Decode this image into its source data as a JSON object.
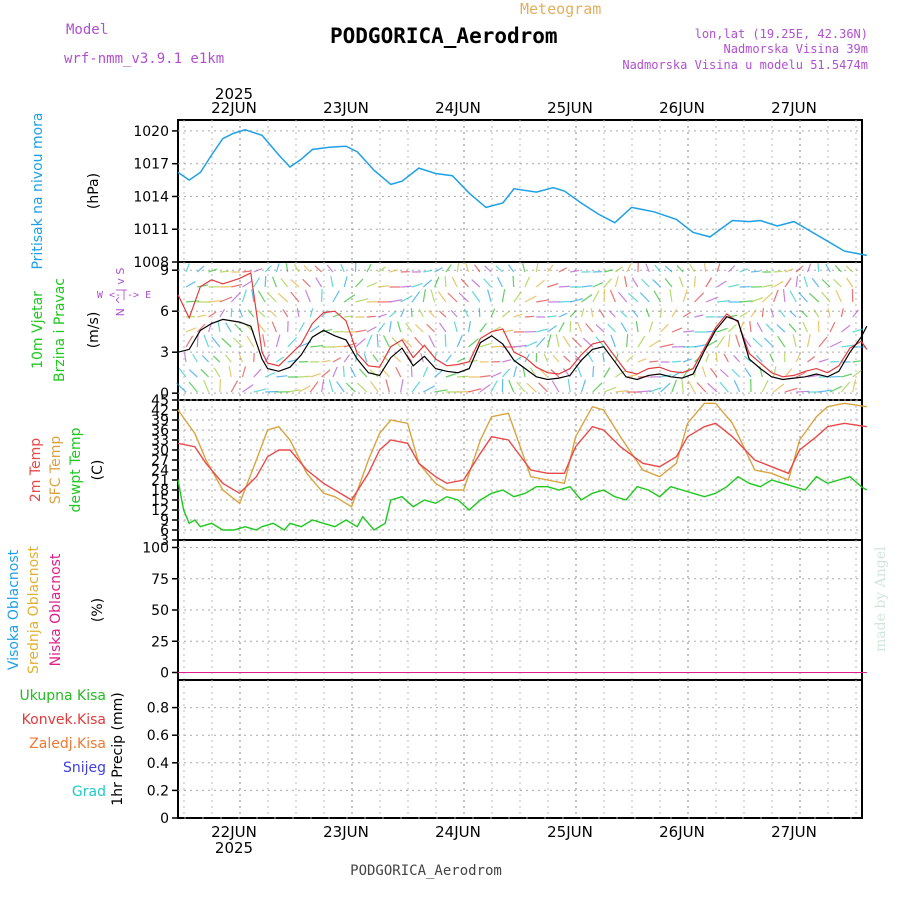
{
  "header": {
    "model_label": "Model",
    "model_value": "wrf-nmm_v3.9.1  e1km",
    "meteogram_label": "Meteogram",
    "station_title": "PODGORICA_Aerodrom",
    "coords": "lon,lat (19.25E, 42.36N)",
    "elevation": "Nadmorska Visina 39m",
    "model_elevation": "Nadmorska Visina u modelu 51.5474m",
    "footer_title": "PODGORICA_Aerodrom",
    "credit": "made by Angel",
    "year_top": "2025",
    "year_bottom": "2025"
  },
  "colors": {
    "pressure": "#1ea0e6",
    "temp2m": "#e84a4a",
    "sfc_temp": "#d9a440",
    "dewpt": "#1ec81e",
    "wind_black": "#000000",
    "wind_red": "#e23a3a",
    "cloud_high": "#1ea0e6",
    "cloud_mid": "#e0b030",
    "cloud_low": "#e0208a",
    "precip_total": "#22bb22",
    "precip_conv": "#e23a3a",
    "precip_frz": "#f07830",
    "precip_snow": "#4040e0",
    "precip_hail": "#22c8c8",
    "model_color": "#b050d0",
    "meteogram_color": "#e0b060"
  },
  "chart_data": [
    {
      "type": "line",
      "panel": "pressure",
      "ylabel_left": "Pritisak na nivou mora",
      "unit": "(hPa)",
      "x_ticks": [
        "22JUN",
        "23JUN",
        "24JUN",
        "25JUN",
        "26JUN",
        "27JUN"
      ],
      "ylim": [
        1008,
        1021
      ],
      "y_ticks": [
        1008,
        1011,
        1014,
        1017,
        1020
      ],
      "series": [
        {
          "key": "pressure",
          "x": [
            0,
            0.1,
            0.2,
            0.3,
            0.4,
            0.5,
            0.6,
            0.75,
            0.9,
            1.0,
            1.1,
            1.2,
            1.35,
            1.5,
            1.6,
            1.75,
            1.9,
            2.0,
            2.15,
            2.3,
            2.45,
            2.6,
            2.75,
            2.9,
            3.0,
            3.2,
            3.35,
            3.45,
            3.6,
            3.75,
            3.9,
            4.05,
            4.25,
            4.45,
            4.6,
            4.75,
            4.95,
            5.1,
            5.2,
            5.35,
            5.5,
            5.65,
            5.8,
            5.95,
            6.15
          ],
          "y": [
            1016.2,
            1015.5,
            1016.2,
            1017.8,
            1019.3,
            1019.8,
            1020.1,
            1019.6,
            1017.8,
            1016.7,
            1017.4,
            1018.3,
            1018.5,
            1018.6,
            1018.1,
            1016.4,
            1015.1,
            1015.4,
            1016.6,
            1016.1,
            1015.9,
            1014.3,
            1013.0,
            1013.4,
            1014.7,
            1014.4,
            1014.8,
            1014.5,
            1013.4,
            1012.4,
            1011.6,
            1013.0,
            1012.6,
            1011.9,
            1010.7,
            1010.3,
            1011.8,
            1011.7,
            1011.8,
            1011.3,
            1011.7,
            1010.8,
            1009.9,
            1009.0,
            1008.6
          ]
        }
      ]
    },
    {
      "type": "line",
      "panel": "wind",
      "ylabel_left": "10m Vjetar",
      "ylabel_left2": "Brzina i Pravac",
      "unit": "(m/s)",
      "compass_ns": "N ^ | v S",
      "compass_we": "W <-|-> E",
      "ylim": [
        -0.5,
        9.6
      ],
      "y_ticks": [
        0,
        3,
        6,
        9
      ],
      "series": [
        {
          "key": "wind_black",
          "x": [
            0,
            0.1,
            0.2,
            0.3,
            0.4,
            0.55,
            0.65,
            0.75,
            0.8,
            0.9,
            1.0,
            1.1,
            1.2,
            1.3,
            1.4,
            1.5,
            1.6,
            1.7,
            1.8,
            1.9,
            2.0,
            2.1,
            2.2,
            2.3,
            2.4,
            2.5,
            2.6,
            2.7,
            2.8,
            2.9,
            3.0,
            3.1,
            3.2,
            3.3,
            3.4,
            3.5,
            3.6,
            3.7,
            3.8,
            3.9,
            4.0,
            4.1,
            4.2,
            4.3,
            4.4,
            4.5,
            4.6,
            4.7,
            4.8,
            4.9,
            5.0,
            5.1,
            5.2,
            5.3,
            5.4,
            5.5,
            5.6,
            5.7,
            5.8,
            5.9,
            6.0,
            6.1,
            6.15
          ],
          "y": [
            3.0,
            3.2,
            4.6,
            5.1,
            5.4,
            5.2,
            4.9,
            2.5,
            1.8,
            1.6,
            1.9,
            2.8,
            4.1,
            4.6,
            4.2,
            3.9,
            2.5,
            1.5,
            1.3,
            2.6,
            3.3,
            2.0,
            2.7,
            1.8,
            1.6,
            1.5,
            1.8,
            3.7,
            4.2,
            3.6,
            2.4,
            1.8,
            1.2,
            1.0,
            1.1,
            1.3,
            2.4,
            3.2,
            3.4,
            2.3,
            1.2,
            1.0,
            1.3,
            1.4,
            1.2,
            1.1,
            1.4,
            3.1,
            4.6,
            5.6,
            5.3,
            2.5,
            1.8,
            1.2,
            1.0,
            1.1,
            1.2,
            1.4,
            1.2,
            1.6,
            3.0,
            4.1,
            4.9
          ]
        },
        {
          "key": "wind_red",
          "x": [
            0,
            0.1,
            0.2,
            0.3,
            0.4,
            0.55,
            0.65,
            0.75,
            0.8,
            0.9,
            1.0,
            1.1,
            1.2,
            1.3,
            1.4,
            1.5,
            1.6,
            1.7,
            1.8,
            1.9,
            2.0,
            2.1,
            2.2,
            2.3,
            2.4,
            2.5,
            2.6,
            2.7,
            2.8,
            2.9,
            3.0,
            3.1,
            3.2,
            3.3,
            3.4,
            3.5,
            3.6,
            3.7,
            3.8,
            3.9,
            4.0,
            4.1,
            4.2,
            4.3,
            4.4,
            4.5,
            4.6,
            4.7,
            4.8,
            4.9,
            5.0,
            5.1,
            5.2,
            5.3,
            5.4,
            5.5,
            5.6,
            5.7,
            5.8,
            5.9,
            6.0,
            6.1,
            6.15
          ],
          "y": [
            7.2,
            5.5,
            7.8,
            8.3,
            8.0,
            8.4,
            8.8,
            3.0,
            2.2,
            2.0,
            2.8,
            3.6,
            5.1,
            5.9,
            6.0,
            5.3,
            2.9,
            2.0,
            1.9,
            3.4,
            3.9,
            2.6,
            3.5,
            2.5,
            2.0,
            2.1,
            2.3,
            4.0,
            4.5,
            4.7,
            3.0,
            2.6,
            1.9,
            1.5,
            1.4,
            1.8,
            2.8,
            3.6,
            3.8,
            2.7,
            1.6,
            1.4,
            1.8,
            1.9,
            1.6,
            1.5,
            1.8,
            3.3,
            4.8,
            5.8,
            5.2,
            2.9,
            2.2,
            1.5,
            1.2,
            1.3,
            1.6,
            1.8,
            1.5,
            2.0,
            3.3,
            3.8,
            3.2
          ]
        }
      ]
    },
    {
      "type": "line",
      "panel": "temperature",
      "ylabel_1": "2m Temp",
      "ylabel_2": "SFC Temp",
      "ylabel_3": "dewpt Temp",
      "unit": "(C)",
      "ylim": [
        3,
        45
      ],
      "y_ticks": [
        3,
        6,
        9,
        12,
        15,
        18,
        21,
        24,
        27,
        30,
        33,
        36,
        39,
        42,
        45
      ],
      "series": [
        {
          "key": "temp2m",
          "x": [
            0,
            0.15,
            0.25,
            0.4,
            0.55,
            0.7,
            0.8,
            0.9,
            1.0,
            1.15,
            1.3,
            1.4,
            1.55,
            1.7,
            1.8,
            1.9,
            2.05,
            2.15,
            2.3,
            2.4,
            2.55,
            2.7,
            2.8,
            2.95,
            3.15,
            3.3,
            3.45,
            3.55,
            3.7,
            3.8,
            3.95,
            4.15,
            4.3,
            4.45,
            4.55,
            4.7,
            4.8,
            4.95,
            5.15,
            5.3,
            5.45,
            5.55,
            5.7,
            5.8,
            5.95,
            6.15
          ],
          "y": [
            32,
            31,
            26,
            20,
            17,
            22,
            28,
            30,
            30,
            24,
            20,
            18,
            15,
            23,
            30,
            33,
            32,
            26,
            22,
            20,
            21,
            29,
            34,
            33,
            24,
            23,
            23,
            31,
            37,
            36,
            31,
            26,
            25,
            28,
            34,
            37,
            38,
            34,
            27,
            25,
            23,
            30,
            34,
            37,
            38,
            37
          ]
        },
        {
          "key": "sfc_temp",
          "x": [
            0,
            0.15,
            0.25,
            0.4,
            0.55,
            0.7,
            0.8,
            0.9,
            1.0,
            1.15,
            1.3,
            1.4,
            1.55,
            1.7,
            1.8,
            1.9,
            2.05,
            2.15,
            2.3,
            2.4,
            2.55,
            2.7,
            2.8,
            2.95,
            3.15,
            3.3,
            3.45,
            3.55,
            3.7,
            3.8,
            3.95,
            4.15,
            4.3,
            4.45,
            4.55,
            4.7,
            4.8,
            4.95,
            5.15,
            5.3,
            5.45,
            5.55,
            5.7,
            5.8,
            5.95,
            6.15
          ],
          "y": [
            42,
            35,
            27,
            18,
            14,
            27,
            36,
            37,
            33,
            23,
            17,
            16,
            13,
            27,
            35,
            39,
            38,
            26,
            20,
            18,
            18,
            33,
            40,
            41,
            22,
            21,
            20,
            34,
            43,
            42,
            34,
            24,
            22,
            26,
            38,
            44,
            44,
            38,
            24,
            23,
            21,
            33,
            40,
            43,
            44,
            43
          ]
        },
        {
          "key": "dewpt",
          "x": [
            0,
            0.05,
            0.1,
            0.15,
            0.2,
            0.3,
            0.4,
            0.5,
            0.6,
            0.7,
            0.75,
            0.85,
            0.95,
            1.0,
            1.1,
            1.2,
            1.3,
            1.4,
            1.5,
            1.6,
            1.65,
            1.75,
            1.85,
            1.9,
            2.0,
            2.1,
            2.2,
            2.3,
            2.4,
            2.5,
            2.6,
            2.7,
            2.8,
            2.9,
            3.0,
            3.1,
            3.2,
            3.3,
            3.4,
            3.5,
            3.6,
            3.7,
            3.8,
            3.9,
            4.0,
            4.1,
            4.2,
            4.3,
            4.4,
            4.5,
            4.6,
            4.7,
            4.8,
            4.9,
            5.0,
            5.1,
            5.2,
            5.3,
            5.4,
            5.5,
            5.6,
            5.7,
            5.8,
            5.9,
            6.0,
            6.1,
            6.15
          ],
          "y": [
            21,
            12,
            8,
            9,
            7,
            8,
            6,
            6,
            7,
            6,
            7,
            8,
            6,
            8,
            7,
            9,
            8,
            7,
            9,
            7,
            10,
            6,
            8,
            15,
            16,
            13,
            15,
            14,
            16,
            15,
            12,
            15,
            17,
            18,
            16,
            17,
            19,
            19,
            18,
            19,
            15,
            17,
            18,
            16,
            15,
            19,
            18,
            16,
            19,
            18,
            17,
            16,
            17,
            19,
            22,
            20,
            19,
            21,
            20,
            19,
            18,
            22,
            20,
            21,
            22,
            19,
            18
          ]
        }
      ]
    },
    {
      "type": "line",
      "panel": "clouds",
      "ylabel_1": "Visoka Oblacnost",
      "ylabel_2": "Srednja Oblacnost",
      "ylabel_3": "Niska Oblacnost",
      "unit": "(%)",
      "ylim": [
        -6,
        106
      ],
      "y_ticks": [
        0,
        25,
        50,
        75,
        100
      ],
      "series": [
        {
          "key": "cloud_high",
          "x": [
            0,
            6.15
          ],
          "y": [
            0,
            0
          ]
        },
        {
          "key": "cloud_mid",
          "x": [
            0,
            6.15
          ],
          "y": [
            0,
            0
          ]
        },
        {
          "key": "cloud_low",
          "x": [
            0,
            6.15
          ],
          "y": [
            0,
            0
          ]
        }
      ]
    },
    {
      "type": "line",
      "panel": "precipitation",
      "legend": [
        "Ukupna Kisa",
        "Konvek.Kisa",
        "Zaledj.Kisa",
        "Snijeg",
        "Grad"
      ],
      "unit": "1hr Precip (mm)",
      "ylim": [
        0,
        1.0
      ],
      "y_ticks": [
        0,
        0.2,
        0.4,
        0.6,
        0.8
      ],
      "series": []
    }
  ]
}
